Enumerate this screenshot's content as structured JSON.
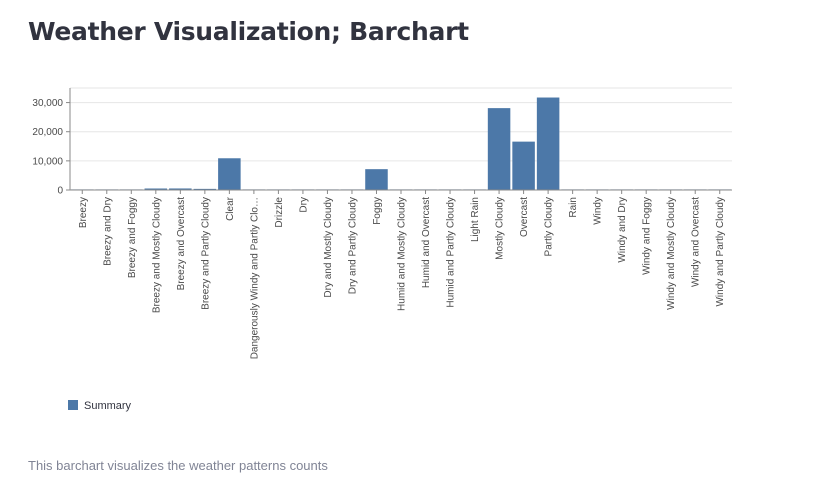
{
  "page": {
    "title": "Weather Visualization; Barchart",
    "caption": "This barchart visualizes the weather patterns counts"
  },
  "colors": {
    "bar": "#4c78a8",
    "grid": "#e6e6e6",
    "axis": "#888888",
    "background": "#ffffff"
  },
  "chart_data": {
    "type": "bar",
    "categories": [
      "Breezy",
      "Breezy and Dry",
      "Breezy and Foggy",
      "Breezy and Mostly Cloudy",
      "Breezy and Overcast",
      "Breezy and Partly Cloudy",
      "Clear",
      "Dangerously Windy and Partly Clo…",
      "Drizzle",
      "Dry",
      "Dry and Mostly Cloudy",
      "Dry and Partly Cloudy",
      "Foggy",
      "Humid and Mostly Cloudy",
      "Humid and Overcast",
      "Humid and Partly Cloudy",
      "Light Rain",
      "Mostly Cloudy",
      "Overcast",
      "Partly Cloudy",
      "Rain",
      "Windy",
      "Windy and Dry",
      "Windy and Foggy",
      "Windy and Mostly Cloudy",
      "Windy and Overcast",
      "Windy and Partly Cloudy"
    ],
    "series": [
      {
        "name": "Summary",
        "values": [
          54,
          1,
          35,
          516,
          528,
          386,
          10890,
          1,
          39,
          34,
          14,
          15,
          7148,
          1,
          7,
          17,
          63,
          28094,
          16597,
          31733,
          10,
          8,
          1,
          4,
          55,
          45,
          67
        ]
      }
    ],
    "xlabel": "",
    "ylabel": "",
    "ylim": [
      0,
      35000
    ],
    "yticks": [
      0,
      10000,
      20000,
      30000
    ],
    "ytick_labels": [
      "0",
      "10,000",
      "20,000",
      "30,000"
    ],
    "grid": true,
    "legend": "bottom-left"
  }
}
